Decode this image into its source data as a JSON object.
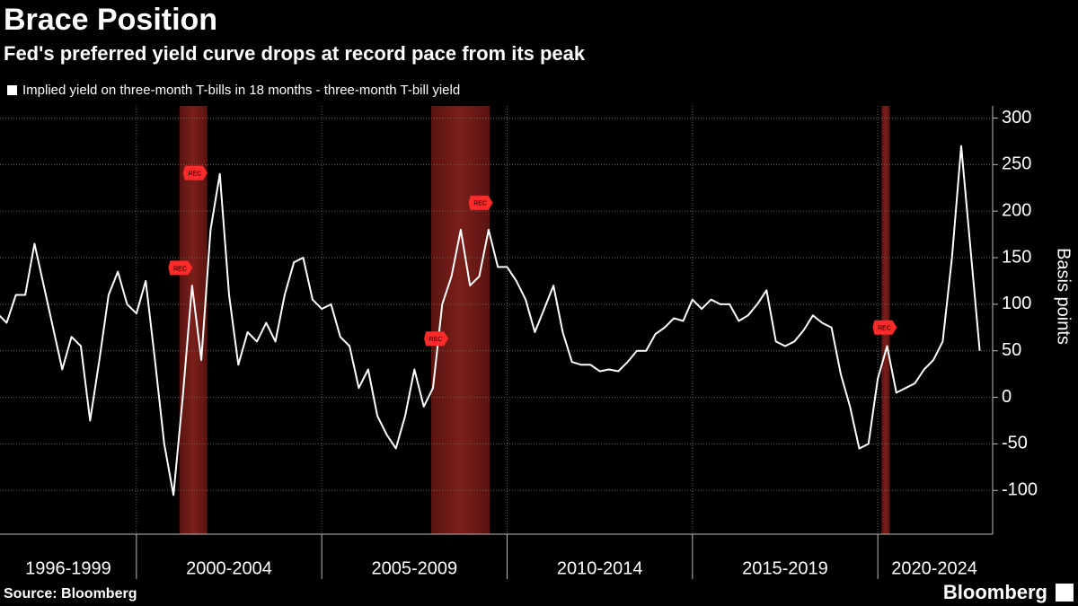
{
  "chart_data": {
    "type": "line",
    "title": "Brace Position",
    "subtitle": "Fed's preferred yield curve drops at record pace from its peak",
    "y_label": "Basis points",
    "source": "Source: Bloomberg",
    "brand": "Bloomberg",
    "xlim": [
      1996.32,
      2023.05
    ],
    "ylim": [
      -147,
      313
    ],
    "yticks": [
      -100,
      -50,
      0,
      50,
      100,
      150,
      200,
      250,
      300
    ],
    "grid": true,
    "x_groups": [
      {
        "label": "1996-1999",
        "start": 1996,
        "end": 2000
      },
      {
        "label": "2000-2004",
        "start": 2000,
        "end": 2005
      },
      {
        "label": "2005-2009",
        "start": 2005,
        "end": 2010
      },
      {
        "label": "2010-2014",
        "start": 2010,
        "end": 2015
      },
      {
        "label": "2015-2019",
        "start": 2015,
        "end": 2020
      },
      {
        "label": "2020-2024",
        "start": 2020,
        "end": 2025
      }
    ],
    "recessions": [
      [
        2001.16,
        2001.91
      ],
      [
        2007.95,
        2009.53
      ],
      [
        2020.1,
        2020.32
      ]
    ],
    "annotations": [
      {
        "text": "REC",
        "x": 2001.2,
        "y": 139
      },
      {
        "text": "REC",
        "x": 2001.6,
        "y": 241
      },
      {
        "text": "REC",
        "x": 2008.1,
        "y": 63
      },
      {
        "text": "REC",
        "x": 2009.3,
        "y": 209
      },
      {
        "text": "REC",
        "x": 2020.2,
        "y": 75
      }
    ],
    "x": [
      1996.25,
      1996.5,
      1996.75,
      1997,
      1997.25,
      1997.5,
      1997.75,
      1998,
      1998.25,
      1998.5,
      1998.75,
      1999,
      1999.25,
      1999.5,
      1999.75,
      2000,
      2000.25,
      2000.5,
      2000.75,
      2001,
      2001.25,
      2001.5,
      2001.75,
      2002,
      2002.25,
      2002.5,
      2002.75,
      2003,
      2003.25,
      2003.5,
      2003.75,
      2004,
      2004.25,
      2004.5,
      2004.75,
      2005,
      2005.25,
      2005.5,
      2005.75,
      2006,
      2006.25,
      2006.5,
      2006.75,
      2007,
      2007.25,
      2007.5,
      2007.75,
      2008,
      2008.25,
      2008.5,
      2008.75,
      2009,
      2009.25,
      2009.5,
      2009.75,
      2010,
      2010.25,
      2010.5,
      2010.75,
      2011,
      2011.25,
      2011.5,
      2011.75,
      2012,
      2012.25,
      2012.5,
      2012.75,
      2013,
      2013.25,
      2013.5,
      2013.75,
      2014,
      2014.25,
      2014.5,
      2014.75,
      2015,
      2015.25,
      2015.5,
      2015.75,
      2016,
      2016.25,
      2016.5,
      2016.75,
      2017,
      2017.25,
      2017.5,
      2017.75,
      2018,
      2018.25,
      2018.5,
      2018.75,
      2019,
      2019.25,
      2019.5,
      2019.75,
      2020,
      2020.25,
      2020.5,
      2020.75,
      2021,
      2021.25,
      2021.5,
      2021.75,
      2022,
      2022.25,
      2022.5,
      2022.75
    ],
    "series": [
      {
        "name": "Implied yield on three-month T-bills in 18 months - three-month T-bill yield",
        "color": "#ffffff",
        "values": [
          90,
          80,
          110,
          110,
          165,
          120,
          75,
          30,
          65,
          55,
          -25,
          40,
          110,
          135,
          100,
          90,
          125,
          40,
          -50,
          -105,
          0,
          120,
          40,
          180,
          240,
          110,
          35,
          70,
          60,
          80,
          60,
          110,
          145,
          150,
          105,
          95,
          100,
          65,
          55,
          10,
          30,
          -20,
          -40,
          -55,
          -20,
          30,
          -10,
          10,
          100,
          130,
          180,
          120,
          130,
          180,
          140,
          140,
          125,
          105,
          70,
          95,
          120,
          70,
          38,
          35,
          35,
          28,
          30,
          28,
          38,
          50,
          50,
          68,
          75,
          85,
          82,
          105,
          95,
          105,
          100,
          100,
          82,
          88,
          100,
          115,
          60,
          55,
          60,
          72,
          88,
          80,
          75,
          25,
          -10,
          -55,
          -50,
          20,
          55,
          5,
          10,
          15,
          30,
          40,
          60,
          150,
          270,
          160,
          50
        ]
      }
    ]
  }
}
